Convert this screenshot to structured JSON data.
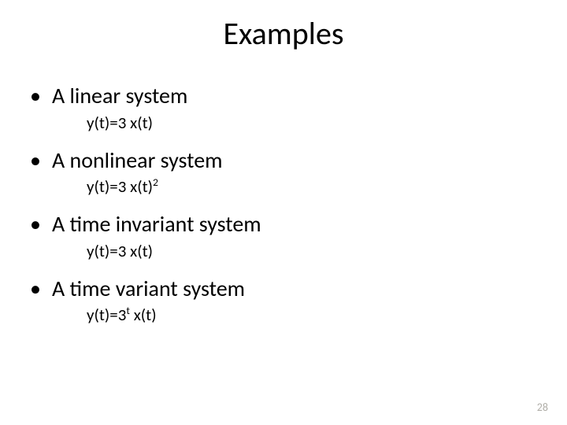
{
  "title": "Examples",
  "bullets": [
    {
      "text": "A linear system",
      "sub": "y(t)=3 x(t)",
      "sup": ""
    },
    {
      "text": "A nonlinear system",
      "sub": "y(t)=3 x(t)",
      "sup": "2"
    },
    {
      "text": "A time invariant system",
      "sub": "y(t)=3 x(t)",
      "sup": ""
    },
    {
      "text": "A time variant system",
      "sub_prefix": "y(t)=3",
      "sup_mid": "t",
      "sub_suffix": " x(t)"
    }
  ],
  "page_number": "28",
  "colors": {
    "text": "#000000",
    "background": "#ffffff",
    "page_number": "#b0aea8"
  },
  "fonts": {
    "title_size": 40,
    "bullet_size": 28,
    "sub_size": 21,
    "page_number_size": 14
  }
}
